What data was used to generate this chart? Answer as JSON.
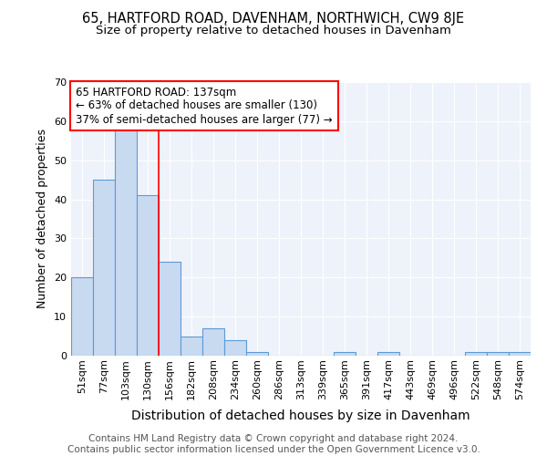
{
  "title1": "65, HARTFORD ROAD, DAVENHAM, NORTHWICH, CW9 8JE",
  "title2": "Size of property relative to detached houses in Davenham",
  "xlabel": "Distribution of detached houses by size in Davenham",
  "ylabel": "Number of detached properties",
  "categories": [
    "51sqm",
    "77sqm",
    "103sqm",
    "130sqm",
    "156sqm",
    "182sqm",
    "208sqm",
    "234sqm",
    "260sqm",
    "286sqm",
    "313sqm",
    "339sqm",
    "365sqm",
    "391sqm",
    "417sqm",
    "443sqm",
    "469sqm",
    "496sqm",
    "522sqm",
    "548sqm",
    "574sqm"
  ],
  "values": [
    20,
    45,
    58,
    41,
    24,
    5,
    7,
    4,
    1,
    0,
    0,
    0,
    1,
    0,
    1,
    0,
    0,
    0,
    1,
    1,
    1
  ],
  "bar_color": "#c8daf0",
  "bar_edge_color": "#5b9bd5",
  "red_line_x": 3.5,
  "annotation_box_text": "65 HARTFORD ROAD: 137sqm\n← 63% of detached houses are smaller (130)\n37% of semi-detached houses are larger (77) →",
  "annotation_box_color": "white",
  "annotation_box_edge_color": "red",
  "red_line_color": "red",
  "ylim": [
    0,
    70
  ],
  "yticks": [
    0,
    10,
    20,
    30,
    40,
    50,
    60,
    70
  ],
  "footnote": "Contains HM Land Registry data © Crown copyright and database right 2024.\nContains public sector information licensed under the Open Government Licence v3.0.",
  "background_color": "#eef2fa",
  "grid_color": "#ffffff",
  "title1_fontsize": 10.5,
  "title2_fontsize": 9.5,
  "xlabel_fontsize": 10,
  "ylabel_fontsize": 9,
  "tick_fontsize": 8,
  "footnote_fontsize": 7.5,
  "annotation_fontsize": 8.5
}
